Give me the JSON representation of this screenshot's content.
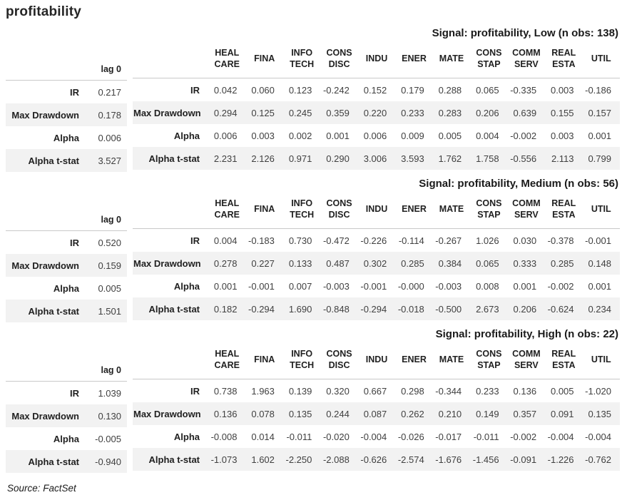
{
  "page": {
    "title": "profitability",
    "footer": "Source: FactSet"
  },
  "colors": {
    "stripe": "#f2f2f2",
    "header_rule": "#c9c9c9",
    "value_text": "#404040",
    "label_text": "#212121"
  },
  "lag_header": "lag 0",
  "row_labels": [
    "IR",
    "Max Drawdown",
    "Alpha",
    "Alpha t-stat"
  ],
  "sector_columns": [
    "HEAL CARE",
    "FINA",
    "INFO TECH",
    "CONS DISC",
    "INDU",
    "ENER",
    "MATE",
    "CONS STAP",
    "COMM SERV",
    "REAL ESTA",
    "UTIL"
  ],
  "sections": [
    {
      "title": "Signal: profitability, Low (n obs: 138)",
      "lag_values": [
        "0.217",
        "0.178",
        "0.006",
        "3.527"
      ],
      "matrix": [
        [
          "0.042",
          "0.060",
          "0.123",
          "-0.242",
          "0.152",
          "0.179",
          "0.288",
          "0.065",
          "-0.335",
          "0.003",
          "-0.186"
        ],
        [
          "0.294",
          "0.125",
          "0.245",
          "0.359",
          "0.220",
          "0.233",
          "0.283",
          "0.206",
          "0.639",
          "0.155",
          "0.157"
        ],
        [
          "0.006",
          "0.003",
          "0.002",
          "0.001",
          "0.006",
          "0.009",
          "0.005",
          "0.004",
          "-0.002",
          "0.003",
          "0.001"
        ],
        [
          "2.231",
          "2.126",
          "0.971",
          "0.290",
          "3.006",
          "3.593",
          "1.762",
          "1.758",
          "-0.556",
          "2.113",
          "0.799"
        ]
      ]
    },
    {
      "title": "Signal: profitability, Medium (n obs: 56)",
      "lag_values": [
        "0.520",
        "0.159",
        "0.005",
        "1.501"
      ],
      "matrix": [
        [
          "0.004",
          "-0.183",
          "0.730",
          "-0.472",
          "-0.226",
          "-0.114",
          "-0.267",
          "1.026",
          "0.030",
          "-0.378",
          "-0.001"
        ],
        [
          "0.278",
          "0.227",
          "0.133",
          "0.487",
          "0.302",
          "0.285",
          "0.384",
          "0.065",
          "0.333",
          "0.285",
          "0.148"
        ],
        [
          "0.001",
          "-0.001",
          "0.007",
          "-0.003",
          "-0.001",
          "-0.000",
          "-0.003",
          "0.008",
          "0.001",
          "-0.002",
          "0.001"
        ],
        [
          "0.182",
          "-0.294",
          "1.690",
          "-0.848",
          "-0.294",
          "-0.018",
          "-0.500",
          "2.673",
          "0.206",
          "-0.624",
          "0.234"
        ]
      ]
    },
    {
      "title": "Signal: profitability, High (n obs: 22)",
      "lag_values": [
        "1.039",
        "0.130",
        "-0.005",
        "-0.940"
      ],
      "matrix": [
        [
          "0.738",
          "1.963",
          "0.139",
          "0.320",
          "0.667",
          "0.298",
          "-0.344",
          "0.233",
          "0.136",
          "0.005",
          "-1.020"
        ],
        [
          "0.136",
          "0.078",
          "0.135",
          "0.244",
          "0.087",
          "0.262",
          "0.210",
          "0.149",
          "0.357",
          "0.091",
          "0.135"
        ],
        [
          "-0.008",
          "0.014",
          "-0.011",
          "-0.020",
          "-0.004",
          "-0.026",
          "-0.017",
          "-0.011",
          "-0.002",
          "-0.004",
          "-0.004"
        ],
        [
          "-1.073",
          "1.602",
          "-2.250",
          "-2.088",
          "-0.626",
          "-2.574",
          "-1.676",
          "-1.456",
          "-0.091",
          "-1.226",
          "-0.762"
        ]
      ]
    }
  ]
}
